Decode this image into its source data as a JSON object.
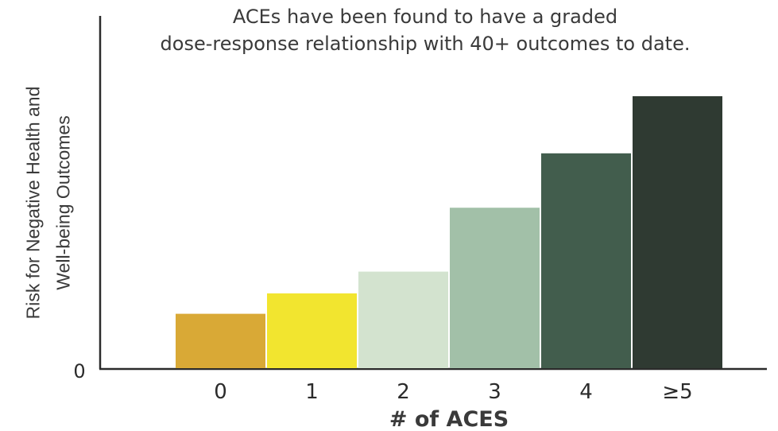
{
  "chart_data": {
    "type": "bar",
    "title_lines": [
      "ACEs have been found to have a graded",
      "dose-response relationship with 40+ outcomes to date."
    ],
    "ylabel_lines": [
      "Risk for Negative Health and",
      "Well-being Outcomes"
    ],
    "xlabel": "# of ACES",
    "y_tick_label": "0",
    "categories": [
      "0",
      "1",
      "2",
      "3",
      "4",
      "≥5"
    ],
    "values": [
      20,
      27.5,
      35.5,
      59,
      79,
      100
    ],
    "ylim": [
      0,
      100
    ],
    "colors": [
      "#d9a936",
      "#f2e52f",
      "#d3e3cf",
      "#a2c0a8",
      "#425d4d",
      "#2f3a32"
    ],
    "grid": false,
    "legend": "none"
  }
}
